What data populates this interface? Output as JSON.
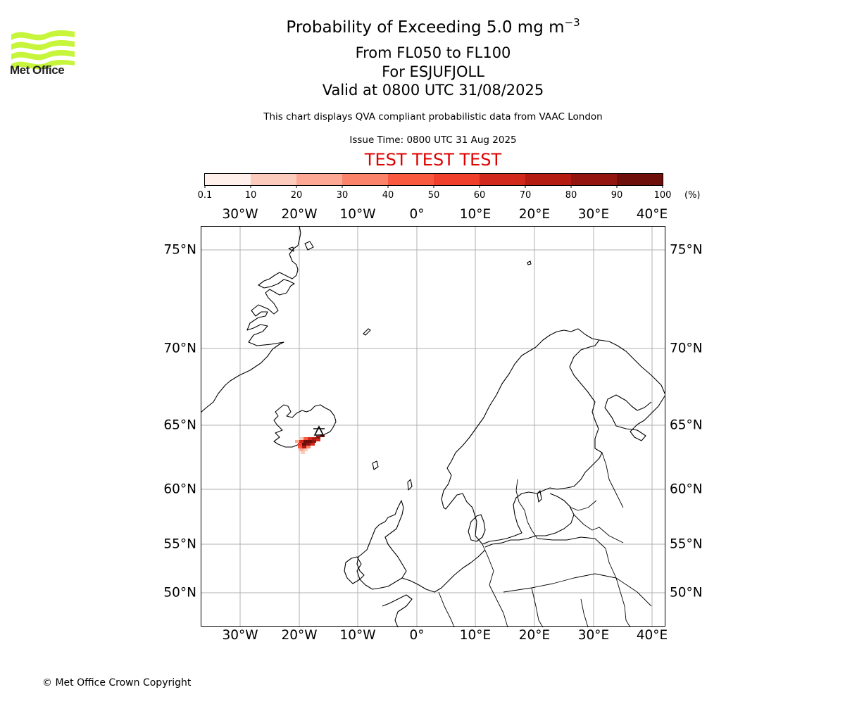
{
  "logo": {
    "text": "Met Office",
    "color": "#c6f53c"
  },
  "title": {
    "main": "Probability of Exceeding 5.0 mg m",
    "sup": "−3"
  },
  "subtitle": {
    "levels": "From FL050 to FL100",
    "volcano": "For ESJUFJOLL",
    "valid": "Valid at 0800 UTC 31/08/2025"
  },
  "description": "This chart displays QVA compliant probabilistic data from VAAC London",
  "issue_time": "Issue Time: 0800 UTC 31 Aug 2025",
  "test_banner": {
    "text": "TEST TEST TEST",
    "color": "#e00000"
  },
  "colorbar": {
    "unit": "(%)",
    "ticks": [
      "0.1",
      "10",
      "20",
      "30",
      "40",
      "50",
      "60",
      "70",
      "80",
      "90",
      "100"
    ],
    "colors": [
      "#fff0eb",
      "#fdcbbc",
      "#fca894",
      "#fb8369",
      "#f95a3f",
      "#f0402b",
      "#d12a1c",
      "#b41c12",
      "#94150f",
      "#6e0f0b"
    ]
  },
  "map": {
    "lon_labels": [
      "30°W",
      "20°W",
      "10°W",
      "0°",
      "10°E",
      "20°E",
      "30°E",
      "40°E"
    ],
    "lat_labels": [
      "75°N",
      "70°N",
      "65°N",
      "60°N",
      "55°N",
      "50°N"
    ],
    "volcano_marker": "triangle",
    "grid": true
  },
  "copyright": "© Met Office Crown Copyright"
}
